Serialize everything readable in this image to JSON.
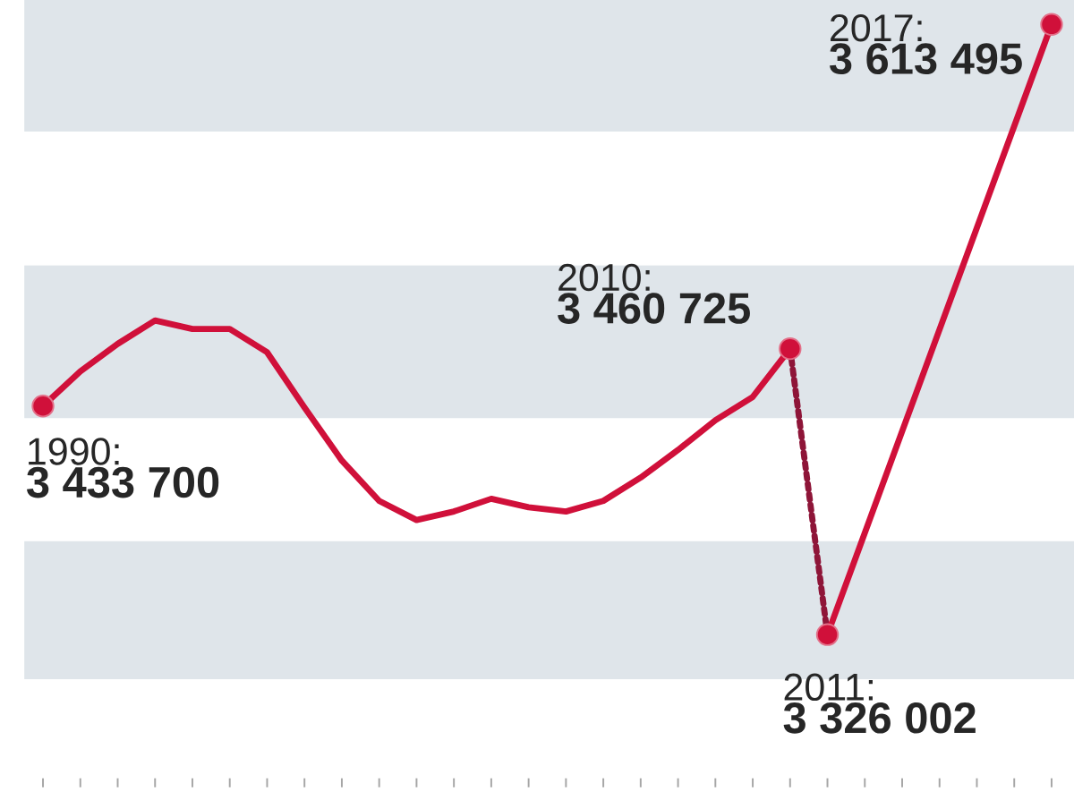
{
  "chart_data": {
    "type": "line",
    "categories": [
      null,
      null,
      null,
      null,
      null,
      null,
      null,
      null,
      null,
      null,
      null,
      null,
      null,
      null,
      null,
      null,
      null,
      null,
      null,
      null,
      null,
      null,
      null,
      null,
      null,
      null,
      null,
      null
    ],
    "series": [
      {
        "type": "line",
        "color": "#d0103a",
        "line_style": "solid",
        "values": [
          3433700,
          3450000,
          3463000,
          3474000,
          3470000,
          3470000,
          3459000,
          3433000,
          3408000,
          3389000,
          3380000,
          3384000,
          3390000,
          3386000,
          3384000,
          3389000,
          3400000,
          3413000,
          3427000,
          3438000,
          3460725,
          3326002,
          null,
          null,
          null,
          null,
          null,
          3613495
        ],
        "value_labels": [
          "3 433 700",
          null,
          null,
          null,
          null,
          null,
          null,
          null,
          null,
          null,
          null,
          null,
          null,
          null,
          null,
          null,
          null,
          null,
          null,
          null,
          "3 460 725",
          "3 326 002",
          null,
          null,
          null,
          null,
          null,
          "3 613 495"
        ]
      },
      {
        "type": "line",
        "color": "#8e1538",
        "line_style": "dotted",
        "values": [
          null,
          null,
          null,
          null,
          null,
          null,
          null,
          null,
          null,
          null,
          null,
          null,
          null,
          null,
          null,
          null,
          null,
          null,
          null,
          null,
          3460725,
          3326002,
          null,
          null,
          null,
          null,
          null,
          null
        ]
      }
    ],
    "annotations": [
      "1990:",
      "2010:",
      "2011:",
      "2017:"
    ],
    "bands": [
      {
        "axis": "y",
        "from": 3305000,
        "to": 3370000,
        "color": "#dfe5ea"
      },
      {
        "axis": "y",
        "from": 3428000,
        "to": 3500000,
        "color": "#dfe5ea"
      },
      {
        "axis": "y",
        "from": 3563000,
        "to": 3625000,
        "color": "#dfe5ea"
      }
    ]
  }
}
